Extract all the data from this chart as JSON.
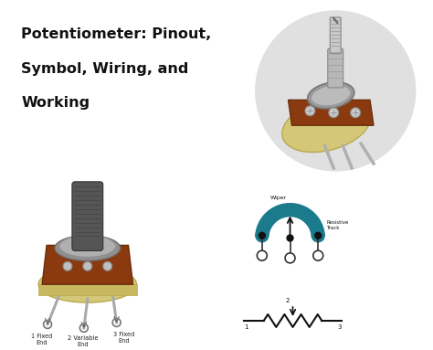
{
  "title_lines": [
    "Potentiometer: Pinout,",
    "Symbol, Wiring, and",
    "Working"
  ],
  "bg_color": "#ffffff",
  "title_color": "#111111",
  "title_fontsize": 11.5,
  "circle_bg": "#e0e0e0",
  "teal_color": "#1b7a8c",
  "label_color": "#222222",
  "label_fontsize": 4.8,
  "wiper_label": "Wiper",
  "track_label": "Resistive\nTrack",
  "pin1_label": "1 Fixed\nEnd",
  "pin2_label": "2 Variable\nEnd",
  "pin3_label": "3 Fixed\nEnd",
  "fig_w": 4.74,
  "fig_h": 3.83,
  "dpi": 100
}
